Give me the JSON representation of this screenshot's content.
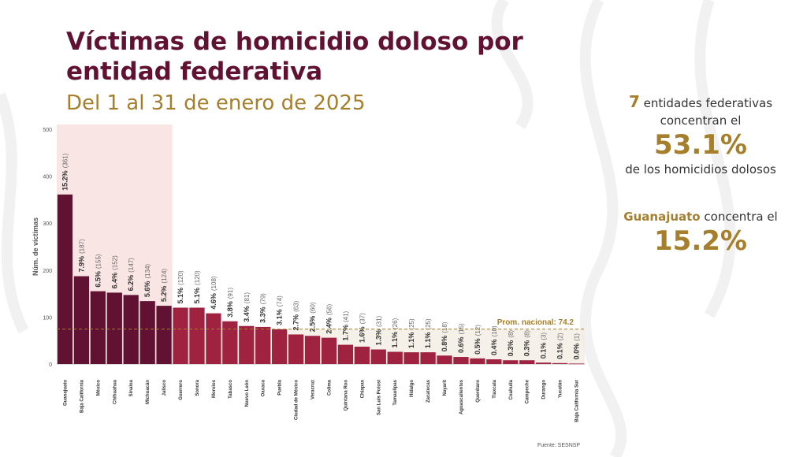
{
  "title": "Víctimas de homicidio doloso por entidad federativa",
  "subtitle": "Del 1 al 31 de enero de 2025",
  "side": {
    "count": "7",
    "line1_rest": " entidades federativas",
    "line2": "concentran el",
    "pct1": "53.1%",
    "line3": "de los homicidios dolosos",
    "state": "Guanajuato",
    "state_rest": " concentra el",
    "pct2": "15.2%"
  },
  "source": "Fuente: SESNSP",
  "colors": {
    "dark": "#611232",
    "mid": "#9f2241",
    "highlight": "#f9e0e0",
    "gold": "#a57f2c"
  },
  "chart_data": {
    "type": "bar",
    "title": "",
    "ylabel": "Núm. de víctimas",
    "ylim": [
      0,
      500
    ],
    "yticks": [
      "0",
      "100",
      "200",
      "300",
      "400",
      "500"
    ],
    "average": 74.2,
    "average_label": "Prom. nacional: 74.2",
    "highlighted_count": 7,
    "categories": [
      "Guanajuato",
      "Baja California",
      "México",
      "Chihuahua",
      "Sinaloa",
      "Michoacán",
      "Jalisco",
      "Guerrero",
      "Sonora",
      "Morelos",
      "Tabasco",
      "Nuevo León",
      "Oaxaca",
      "Puebla",
      "Ciudad de México",
      "Veracruz",
      "Colima",
      "Quintana Roo",
      "Chiapas",
      "San Luis Potosí",
      "Tamaulipas",
      "Hidalgo",
      "Zacatecas",
      "Nayarit",
      "Aguascalientes",
      "Querétaro",
      "Tlaxcala",
      "Coahuila",
      "Campeche",
      "Durango",
      "Yucatán",
      "Baja California Sur"
    ],
    "values": [
      361,
      187,
      155,
      152,
      147,
      134,
      124,
      120,
      120,
      108,
      91,
      81,
      79,
      74,
      63,
      60,
      56,
      41,
      37,
      31,
      26,
      25,
      25,
      18,
      15,
      12,
      10,
      8,
      8,
      3,
      2,
      1
    ],
    "value_labels": [
      "(361)",
      "(187)",
      "(155)",
      "(152)",
      "(147)",
      "(134)",
      "(124)",
      "(120)",
      "(120)",
      "(108)",
      "(91)",
      "(81)",
      "(79)",
      "(74)",
      "(63)",
      "(60)",
      "(56)",
      "(41)",
      "(37)",
      "(31)",
      "(26)",
      "(25)",
      "(25)",
      "(18)",
      "(15)",
      "(12)",
      "(10)",
      "(8)",
      "(8)",
      "(3)",
      "(2)",
      "(1)"
    ],
    "percent_labels": [
      "15.2%",
      "7.9%",
      "6.5%",
      "6.4%",
      "6.2%",
      "5.6%",
      "5.2%",
      "5.1%",
      "5.1%",
      "4.6%",
      "3.8%",
      "3.4%",
      "3.3%",
      "3.1%",
      "2.7%",
      "2.5%",
      "2.4%",
      "1.7%",
      "1.6%",
      "1.3%",
      "1.1%",
      "1.1%",
      "1.1%",
      "0.8%",
      "0.6%",
      "0.5%",
      "0.4%",
      "0.3%",
      "0.3%",
      "0.1%",
      "0.1%",
      "0.0%"
    ]
  }
}
